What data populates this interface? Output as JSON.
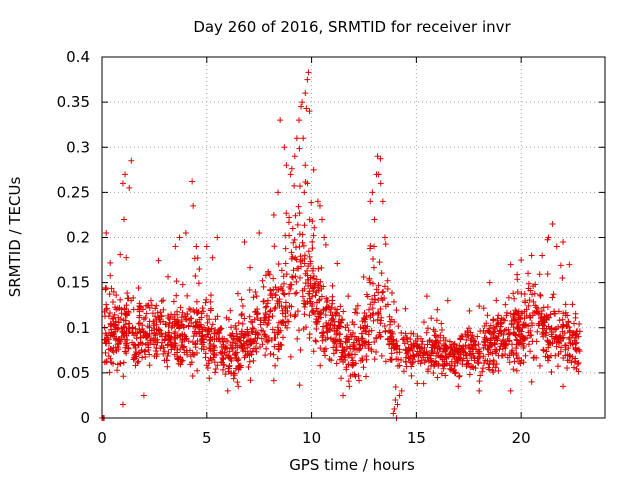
{
  "chart_data": {
    "type": "scatter",
    "title": "Day 260 of 2016, SRMTID for receiver invr",
    "xlabel": "GPS time / hours",
    "ylabel": "SRMTID / TECUs",
    "xlim": [
      0,
      24
    ],
    "ylim": [
      0,
      0.4
    ],
    "x_ticks": [
      0,
      5,
      10,
      15,
      20
    ],
    "y_ticks": [
      0,
      0.05,
      0.1,
      0.15,
      0.2,
      0.25,
      0.3,
      0.35,
      0.4
    ],
    "x_tick_labels": [
      "0",
      "5",
      "10",
      "15",
      "20"
    ],
    "y_tick_labels": [
      "0",
      "0.05",
      "0.1",
      "0.15",
      "0.2",
      "0.25",
      "0.3",
      "0.35",
      "0.4"
    ],
    "grid": true,
    "marker": "+",
    "series_color": "#e00000",
    "series": [
      {
        "name": "SRMTID",
        "profile_x": [
          0.1,
          0.5,
          1.0,
          1.5,
          2.0,
          2.5,
          3.0,
          3.5,
          4.0,
          4.5,
          5.0,
          5.5,
          6.0,
          6.5,
          7.0,
          7.5,
          8.0,
          8.5,
          9.0,
          9.5,
          10.0,
          10.5,
          11.0,
          11.5,
          12.0,
          12.5,
          13.0,
          13.3,
          13.7,
          14.0,
          14.5,
          15.0,
          15.5,
          16.0,
          16.5,
          17.0,
          17.5,
          18.0,
          18.5,
          19.0,
          19.5,
          20.0,
          20.5,
          21.0,
          21.5,
          22.0,
          22.5,
          22.8
        ],
        "profile_median": [
          0.1,
          0.09,
          0.1,
          0.1,
          0.095,
          0.095,
          0.09,
          0.095,
          0.095,
          0.095,
          0.09,
          0.085,
          0.075,
          0.075,
          0.085,
          0.1,
          0.11,
          0.12,
          0.15,
          0.17,
          0.14,
          0.11,
          0.1,
          0.08,
          0.075,
          0.09,
          0.12,
          0.13,
          0.09,
          0.08,
          0.075,
          0.075,
          0.075,
          0.072,
          0.07,
          0.072,
          0.072,
          0.075,
          0.08,
          0.085,
          0.09,
          0.1,
          0.1,
          0.1,
          0.095,
          0.09,
          0.08,
          0.075
        ],
        "profile_spread": [
          0.03,
          0.035,
          0.035,
          0.035,
          0.03,
          0.03,
          0.03,
          0.03,
          0.03,
          0.03,
          0.03,
          0.028,
          0.025,
          0.028,
          0.03,
          0.035,
          0.04,
          0.045,
          0.06,
          0.07,
          0.05,
          0.035,
          0.03,
          0.028,
          0.025,
          0.03,
          0.045,
          0.05,
          0.03,
          0.025,
          0.022,
          0.022,
          0.022,
          0.02,
          0.02,
          0.02,
          0.02,
          0.022,
          0.025,
          0.028,
          0.03,
          0.035,
          0.035,
          0.035,
          0.03,
          0.03,
          0.028,
          0.025
        ],
        "peaks": [
          [
            0.2,
            0.205
          ],
          [
            1.0,
            0.26
          ],
          [
            1.05,
            0.22
          ],
          [
            1.1,
            0.27
          ],
          [
            1.4,
            0.285
          ],
          [
            1.3,
            0.255
          ],
          [
            3.5,
            0.19
          ],
          [
            3.7,
            0.2
          ],
          [
            4.0,
            0.205
          ],
          [
            4.3,
            0.262
          ],
          [
            4.35,
            0.235
          ],
          [
            4.5,
            0.19
          ],
          [
            5.0,
            0.19
          ],
          [
            5.5,
            0.2
          ],
          [
            6.8,
            0.195
          ],
          [
            7.5,
            0.205
          ],
          [
            8.2,
            0.225
          ],
          [
            8.4,
            0.25
          ],
          [
            8.5,
            0.33
          ],
          [
            8.7,
            0.3
          ],
          [
            8.8,
            0.28
          ],
          [
            9.0,
            0.27
          ],
          [
            9.2,
            0.29
          ],
          [
            9.3,
            0.31
          ],
          [
            9.4,
            0.33
          ],
          [
            9.5,
            0.345
          ],
          [
            9.55,
            0.35
          ],
          [
            9.6,
            0.31
          ],
          [
            9.7,
            0.28
          ],
          [
            9.8,
            0.26
          ],
          [
            9.65,
            0.25
          ],
          [
            9.7,
            0.36
          ],
          [
            9.75,
            0.343
          ],
          [
            9.8,
            0.375
          ],
          [
            9.85,
            0.383
          ],
          [
            9.9,
            0.34
          ],
          [
            10.1,
            0.275
          ],
          [
            10.3,
            0.24
          ],
          [
            10.4,
            0.235
          ],
          [
            10.5,
            0.22
          ],
          [
            10.6,
            0.2
          ],
          [
            12.8,
            0.24
          ],
          [
            12.9,
            0.25
          ],
          [
            13.0,
            0.22
          ],
          [
            13.1,
            0.27
          ],
          [
            13.15,
            0.29
          ],
          [
            13.2,
            0.27
          ],
          [
            13.3,
            0.26
          ],
          [
            13.4,
            0.24
          ],
          [
            13.5,
            0.2
          ],
          [
            21.0,
            0.18
          ],
          [
            21.3,
            0.2
          ],
          [
            21.5,
            0.215
          ],
          [
            21.7,
            0.19
          ],
          [
            22.0,
            0.195
          ],
          [
            22.3,
            0.17
          ],
          [
            19.5,
            0.17
          ],
          [
            20.0,
            0.175
          ],
          [
            20.5,
            0.18
          ],
          [
            18.5,
            0.15
          ],
          [
            16.5,
            0.13
          ],
          [
            15.5,
            0.135
          ],
          [
            16.0,
            0.12
          ]
        ],
        "troughs": [
          [
            0.0,
            0.0
          ],
          [
            0.05,
            0.0
          ],
          [
            0.1,
            0.0
          ],
          [
            1.0,
            0.015
          ],
          [
            2.0,
            0.025
          ],
          [
            6.0,
            0.03
          ],
          [
            6.5,
            0.035
          ],
          [
            11.5,
            0.025
          ],
          [
            11.8,
            0.035
          ],
          [
            13.9,
            0.005
          ],
          [
            13.95,
            0.01
          ],
          [
            14.0,
            0.02
          ],
          [
            14.05,
            0.0
          ],
          [
            14.1,
            0.015
          ],
          [
            14.2,
            0.025
          ],
          [
            14.3,
            0.03
          ],
          [
            17.0,
            0.035
          ],
          [
            18.0,
            0.03
          ],
          [
            19.5,
            0.03
          ],
          [
            20.5,
            0.04
          ],
          [
            22.0,
            0.035
          ]
        ]
      }
    ]
  }
}
